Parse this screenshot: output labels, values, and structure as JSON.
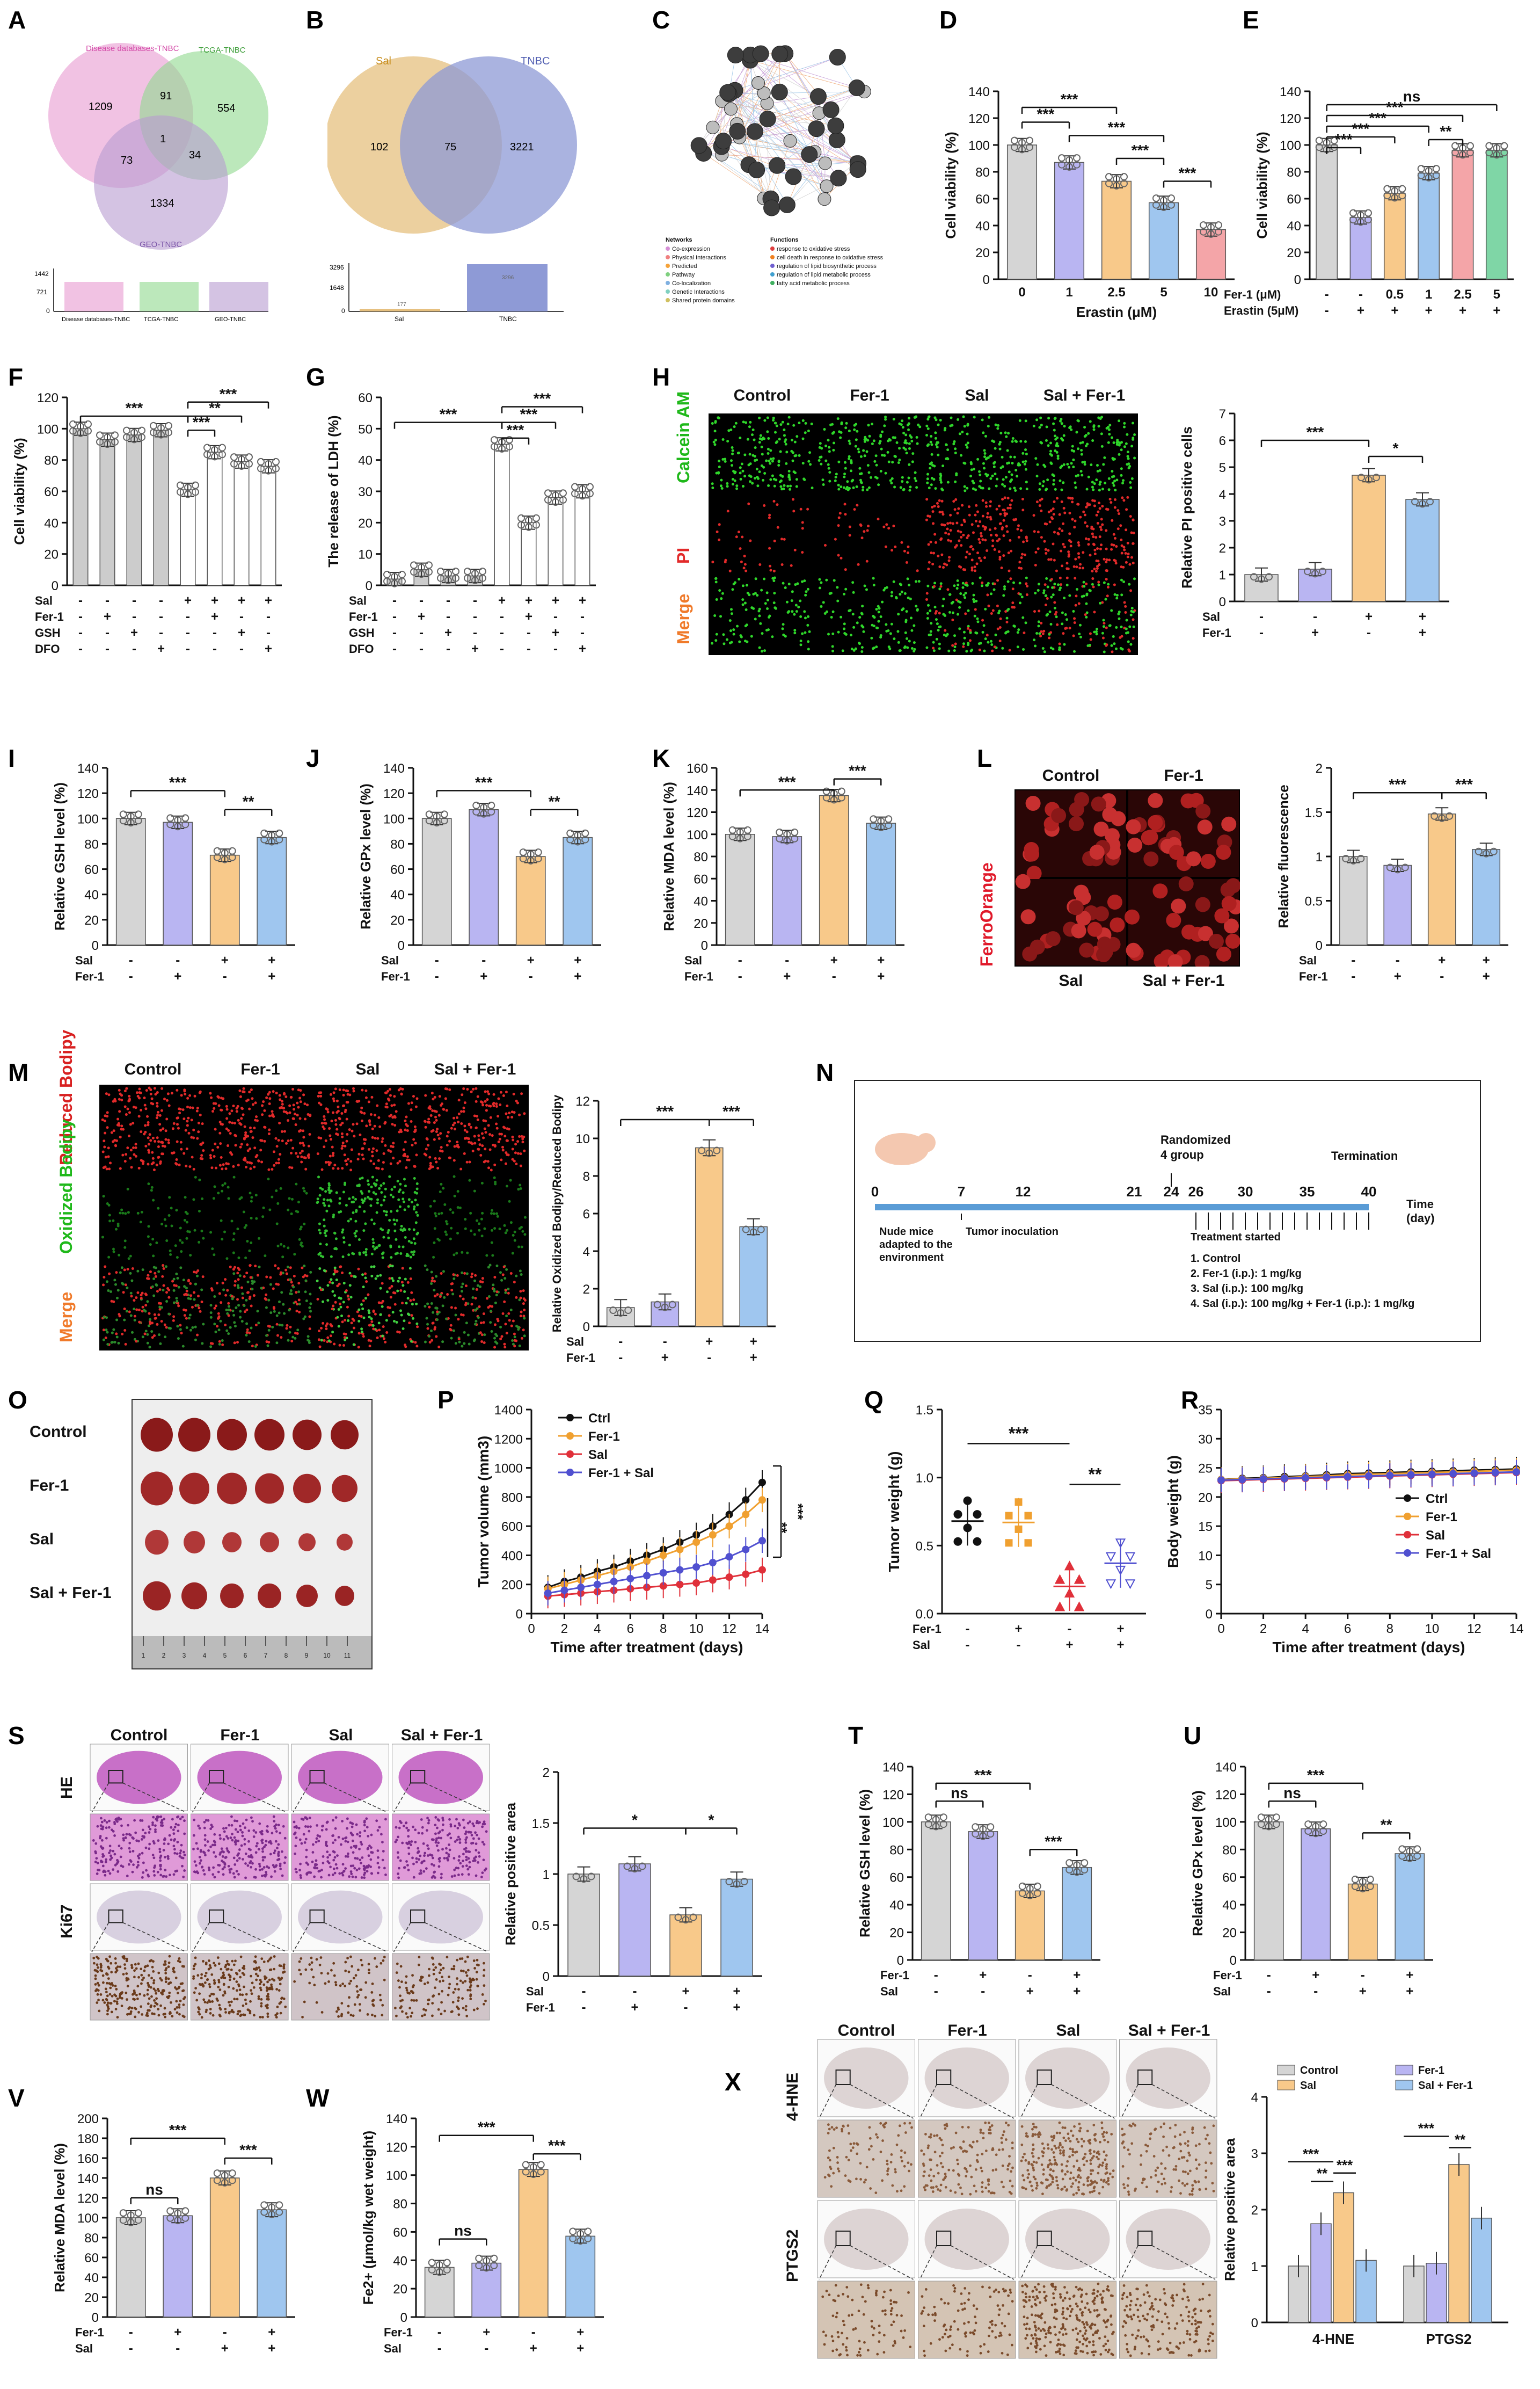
{
  "colors": {
    "ctrl": "#d5d5d5",
    "fer1": "#b9b5f2",
    "sal": "#f8c98a",
    "salfer": "#9fc6ef",
    "pink": "#f4a5a8",
    "green": "#7fd6a6",
    "red": "#e0192a",
    "microgreen": "#2fd62a",
    "microred": "#e22a2a"
  },
  "panel_labels": [
    "A",
    "B",
    "C",
    "D",
    "E",
    "F",
    "G",
    "H",
    "I",
    "J",
    "K",
    "L",
    "M",
    "N",
    "O",
    "P",
    "Q",
    "R",
    "S",
    "T",
    "U",
    "V",
    "W",
    "X"
  ],
  "venn_a": {
    "sets": [
      "Disease databases-TNBC",
      "TCGA-TNBC",
      "GEO-TNBC"
    ],
    "regions": [
      "1209",
      "91",
      "554",
      "1",
      "73",
      "34",
      "1334"
    ],
    "bar_ticks": [
      "1442",
      "721",
      "0"
    ],
    "bar_labels": [
      "Disease databases-TNBC",
      "TCGA-TNBC",
      "GEO-TNBC"
    ]
  },
  "venn_b": {
    "sets": [
      "Sal",
      "TNBC"
    ],
    "regions": [
      "102",
      "75",
      "3221"
    ],
    "bar_ticks": [
      "3296",
      "1648",
      "0"
    ],
    "bar_labels": [
      "Sal",
      "TNBC"
    ],
    "bar_values": [
      "177",
      "3296"
    ]
  },
  "network_c": {
    "networks_title": "Networks",
    "networks": [
      "Co-expression",
      "Physical Interactions",
      "Predicted",
      "Pathway",
      "Co-localization",
      "Genetic Interactions",
      "Shared protein domains"
    ],
    "functions_title": "Functions",
    "functions": [
      "response to oxidative stress",
      "cell death in response to oxidative stress",
      "regulation of lipid biosynthetic process",
      "regulation of lipid metabolic process",
      "fatty acid metabolic process"
    ]
  },
  "sig": {
    "three": "***",
    "two": "**",
    "one": "*",
    "ns": "ns"
  },
  "row_labels": {
    "sal": "Sal",
    "fer1": "Fer-1",
    "gsh": "GSH",
    "dfo": "DFO",
    "fer1_um": "Fer-1 (μM)",
    "erastin5": "Erastin (5μM)"
  },
  "chart_data": [
    {
      "id": "D",
      "type": "bar",
      "categories": [
        "0",
        "1",
        "2.5",
        "5",
        "10"
      ],
      "values": [
        100,
        87,
        73,
        57,
        37
      ],
      "ylabel": "Cell viability (%)",
      "xlabel": "Erastin (μM)",
      "ylim": [
        0,
        140
      ]
    },
    {
      "id": "E",
      "type": "bar",
      "categories": [
        "-/-",
        "-/+",
        "0.5/+",
        "1/+",
        "2.5/+",
        "5/+"
      ],
      "values": [
        100,
        46,
        64,
        79,
        96,
        96
      ],
      "ylabel": "Cell viability (%)",
      "ylim": [
        0,
        140
      ],
      "rows": [
        [
          "-",
          "-",
          "0.5",
          "1",
          "2.5",
          "5"
        ],
        [
          "-",
          "+",
          "+",
          "+",
          "+",
          "+"
        ]
      ]
    },
    {
      "id": "F",
      "type": "bar",
      "categories": [
        "1",
        "2",
        "3",
        "4",
        "5",
        "6",
        "7",
        "8"
      ],
      "values": [
        100,
        93,
        96,
        99,
        61,
        85,
        79,
        76
      ],
      "ylabel": "Cell viability (%)",
      "ylim": [
        0,
        120
      ],
      "rows": [
        [
          "-",
          "-",
          "-",
          "-",
          "+",
          "+",
          "+",
          "+"
        ],
        [
          "-",
          "+",
          "-",
          "-",
          "-",
          "+",
          "-",
          "-"
        ],
        [
          "-",
          "-",
          "+",
          "-",
          "-",
          "-",
          "+",
          "-"
        ],
        [
          "-",
          "-",
          "-",
          "+",
          "-",
          "-",
          "-",
          "+"
        ]
      ]
    },
    {
      "id": "G",
      "type": "bar",
      "categories": [
        "1",
        "2",
        "3",
        "4",
        "5",
        "6",
        "7",
        "8"
      ],
      "values": [
        2,
        5,
        3,
        3,
        45,
        20,
        28,
        30
      ],
      "ylabel": "The release of LDH (%)",
      "ylim": [
        0,
        60
      ],
      "rows": [
        [
          "-",
          "-",
          "-",
          "-",
          "+",
          "+",
          "+",
          "+"
        ],
        [
          "-",
          "+",
          "-",
          "-",
          "-",
          "+",
          "-",
          "-"
        ],
        [
          "-",
          "-",
          "+",
          "-",
          "-",
          "-",
          "+",
          "-"
        ],
        [
          "-",
          "-",
          "-",
          "+",
          "-",
          "-",
          "-",
          "+"
        ]
      ]
    },
    {
      "id": "H",
      "type": "bar",
      "categories": [
        "Control",
        "Fer-1",
        "Sal",
        "Sal+Fer-1"
      ],
      "values": [
        1.0,
        1.2,
        4.7,
        3.8
      ],
      "ylabel": "Relative PI positive cells",
      "ylim": [
        0,
        7
      ]
    },
    {
      "id": "I",
      "type": "bar",
      "categories": [
        "Control",
        "Fer-1",
        "Sal",
        "Sal+Fer-1"
      ],
      "values": [
        100,
        97,
        71,
        85
      ],
      "ylabel": "Relative GSH level (%)",
      "ylim": [
        0,
        140
      ]
    },
    {
      "id": "J",
      "type": "bar",
      "categories": [
        "Control",
        "Fer-1",
        "Sal",
        "Sal+Fer-1"
      ],
      "values": [
        100,
        107,
        70,
        85
      ],
      "ylabel": "Relative GPx level (%)",
      "ylim": [
        0,
        140
      ]
    },
    {
      "id": "K",
      "type": "bar",
      "categories": [
        "Control",
        "Fer-1",
        "Sal",
        "Sal+Fer-1"
      ],
      "values": [
        100,
        98,
        135,
        110
      ],
      "ylabel": "Relative MDA level (%)",
      "ylim": [
        0,
        160
      ]
    },
    {
      "id": "L",
      "type": "bar",
      "categories": [
        "Control",
        "Fer-1",
        "Sal",
        "Sal+Fer-1"
      ],
      "values": [
        1.0,
        0.9,
        1.48,
        1.08
      ],
      "ylabel": "Relative fluorescence",
      "ylim": [
        0,
        2.0
      ]
    },
    {
      "id": "M",
      "type": "bar",
      "categories": [
        "Control",
        "Fer-1",
        "Sal",
        "Sal+Fer-1"
      ],
      "values": [
        1.0,
        1.3,
        9.5,
        5.3
      ],
      "ylabel": "Relative Oxidized Bodipy/Reduced Bodipy",
      "ylim": [
        0,
        12
      ]
    },
    {
      "id": "P",
      "type": "line",
      "x": [
        1,
        2,
        3,
        4,
        5,
        6,
        7,
        8,
        9,
        10,
        11,
        12,
        13,
        14
      ],
      "series": [
        {
          "name": "Ctrl",
          "values": [
            180,
            220,
            250,
            290,
            320,
            360,
            400,
            440,
            490,
            540,
            600,
            680,
            780,
            900
          ]
        },
        {
          "name": "Fer-1",
          "values": [
            170,
            200,
            230,
            260,
            290,
            320,
            360,
            400,
            440,
            490,
            540,
            600,
            680,
            780
          ]
        },
        {
          "name": "Sal",
          "values": [
            120,
            130,
            140,
            150,
            160,
            170,
            180,
            190,
            200,
            210,
            230,
            250,
            270,
            300
          ]
        },
        {
          "name": "Fer-1 + Sal",
          "values": [
            140,
            160,
            180,
            200,
            220,
            240,
            260,
            280,
            300,
            320,
            350,
            390,
            440,
            500
          ]
        }
      ],
      "ylabel": "Tumor volume (mm3)",
      "xlabel": "Time after treatment (days)",
      "xlim": [
        0,
        14
      ],
      "ylim": [
        0,
        1400
      ]
    },
    {
      "id": "Q",
      "type": "scatter",
      "categories": [
        "Ctrl",
        "Fer-1",
        "Sal",
        "Fer-1+Sal"
      ],
      "values": [
        0.68,
        0.67,
        0.2,
        0.37
      ],
      "ylabel": "Tumor weight (g)",
      "ylim": [
        0,
        1.5
      ]
    },
    {
      "id": "R",
      "type": "line",
      "x": [
        0,
        1,
        2,
        3,
        4,
        5,
        6,
        7,
        8,
        9,
        10,
        11,
        12,
        13,
        14
      ],
      "series": [
        {
          "name": "Ctrl",
          "values": [
            23,
            23.2,
            23.3,
            23.5,
            23.6,
            23.8,
            24,
            24.1,
            24.2,
            24.3,
            24.4,
            24.5,
            24.6,
            24.7,
            24.8
          ]
        },
        {
          "name": "Fer-1",
          "values": [
            23,
            23.1,
            23.2,
            23.3,
            23.5,
            23.6,
            23.8,
            23.9,
            24,
            24.1,
            24.2,
            24.3,
            24.4,
            24.5,
            24.6
          ]
        },
        {
          "name": "Sal",
          "values": [
            22.8,
            22.9,
            23,
            23.1,
            23.2,
            23.3,
            23.4,
            23.5,
            23.6,
            23.7,
            23.8,
            23.9,
            24,
            24.1,
            24.2
          ]
        },
        {
          "name": "Fer-1 + Sal",
          "values": [
            22.9,
            23,
            23.1,
            23.2,
            23.3,
            23.4,
            23.5,
            23.6,
            23.7,
            23.8,
            23.9,
            24,
            24.1,
            24.2,
            24.3
          ]
        }
      ],
      "ylabel": "Body weight (g)",
      "xlabel": "Time after treatment (days)",
      "xlim": [
        0,
        14
      ],
      "ylim": [
        0,
        35
      ]
    },
    {
      "id": "S",
      "type": "bar",
      "categories": [
        "Control",
        "Fer-1",
        "Sal",
        "Sal+Fer-1"
      ],
      "values": [
        1.0,
        1.1,
        0.6,
        0.95
      ],
      "ylabel": "Relative positive area",
      "ylim": [
        0,
        2.0
      ]
    },
    {
      "id": "T",
      "type": "bar",
      "categories": [
        "Control",
        "Fer-1",
        "Sal",
        "Sal+Fer-1"
      ],
      "values": [
        100,
        93,
        50,
        67
      ],
      "ylabel": "Relative GSH level (%)",
      "ylim": [
        0,
        140
      ]
    },
    {
      "id": "U",
      "type": "bar",
      "categories": [
        "Control",
        "Fer-1",
        "Sal",
        "Sal+Fer-1"
      ],
      "values": [
        100,
        95,
        55,
        77
      ],
      "ylabel": "Relative GPx level (%)",
      "ylim": [
        0,
        140
      ]
    },
    {
      "id": "V",
      "type": "bar",
      "categories": [
        "Control",
        "Fer-1",
        "Sal",
        "Sal+Fer-1"
      ],
      "values": [
        100,
        102,
        140,
        108
      ],
      "ylabel": "Relative MDA level (%)",
      "ylim": [
        0,
        200
      ]
    },
    {
      "id": "W",
      "type": "bar",
      "categories": [
        "Control",
        "Fer-1",
        "Sal",
        "Sal+Fer-1"
      ],
      "values": [
        35,
        38,
        104,
        57
      ],
      "ylabel": "Fe2+ (μmol/kg wet weight)",
      "ylim": [
        0,
        140
      ]
    },
    {
      "id": "X",
      "type": "bar",
      "categories": [
        "4-HNE",
        "PTGS2"
      ],
      "series": [
        {
          "name": "Control",
          "values": [
            1.0,
            1.0
          ]
        },
        {
          "name": "Fer-1",
          "values": [
            1.75,
            1.05
          ]
        },
        {
          "name": "Sal",
          "values": [
            2.3,
            2.8
          ]
        },
        {
          "name": "Sal + Fer-1",
          "values": [
            1.1,
            1.85
          ]
        }
      ],
      "ylabel": "Relative positive area",
      "ylim": [
        0,
        4
      ]
    }
  ],
  "micro_h": {
    "cols": [
      "Control",
      "Fer-1",
      "Sal",
      "Sal + Fer-1"
    ],
    "rows": [
      "Calcein AM",
      "PI",
      "Merge"
    ]
  },
  "micro_l": {
    "top": [
      "Control",
      "Fer-1"
    ],
    "bottom": [
      "Sal",
      "Sal + Fer-1"
    ],
    "side": "FerroOrange"
  },
  "micro_m": {
    "cols": [
      "Control",
      "Fer-1",
      "Sal",
      "Sal + Fer-1"
    ],
    "rows": [
      "Reduced Bodipy",
      "Oxidized Bodipy",
      "Merge"
    ]
  },
  "timeline_n": {
    "ticks": [
      "0",
      "7",
      "12",
      "21",
      "24",
      "26",
      "30",
      "35",
      "40"
    ],
    "randomized": "Randomized\n4 group",
    "termination": "Termination",
    "time": "Time\n(day)",
    "nude": "Nude mice\nadapted to the\nenvironment",
    "tumor": "Tumor inoculation",
    "treat": "Treatment started",
    "groups": [
      "1. Control",
      "2. Fer-1 (i.p.): 1 mg/kg",
      "3. Sal (i.p.): 100 mg/kg",
      "4. Sal (i.p.): 100 mg/kg + Fer-1 (i.p.): 1 mg/kg"
    ]
  },
  "tumors_o": {
    "rows": [
      "Control",
      "Fer-1",
      "Sal",
      "Sal + Fer-1"
    ],
    "ruler": [
      "1",
      "2",
      "3",
      "4",
      "5",
      "6",
      "7",
      "8",
      "9",
      "10",
      "11"
    ]
  },
  "histo_s": {
    "cols": [
      "Control",
      "Fer-1",
      "Sal",
      "Sal + Fer-1"
    ],
    "rows": [
      "HE",
      "Ki67"
    ]
  },
  "histo_x": {
    "cols": [
      "Control",
      "Fer-1",
      "Sal",
      "Sal + Fer-1"
    ],
    "rows": [
      "4-HNE",
      "PTGS2"
    ]
  }
}
